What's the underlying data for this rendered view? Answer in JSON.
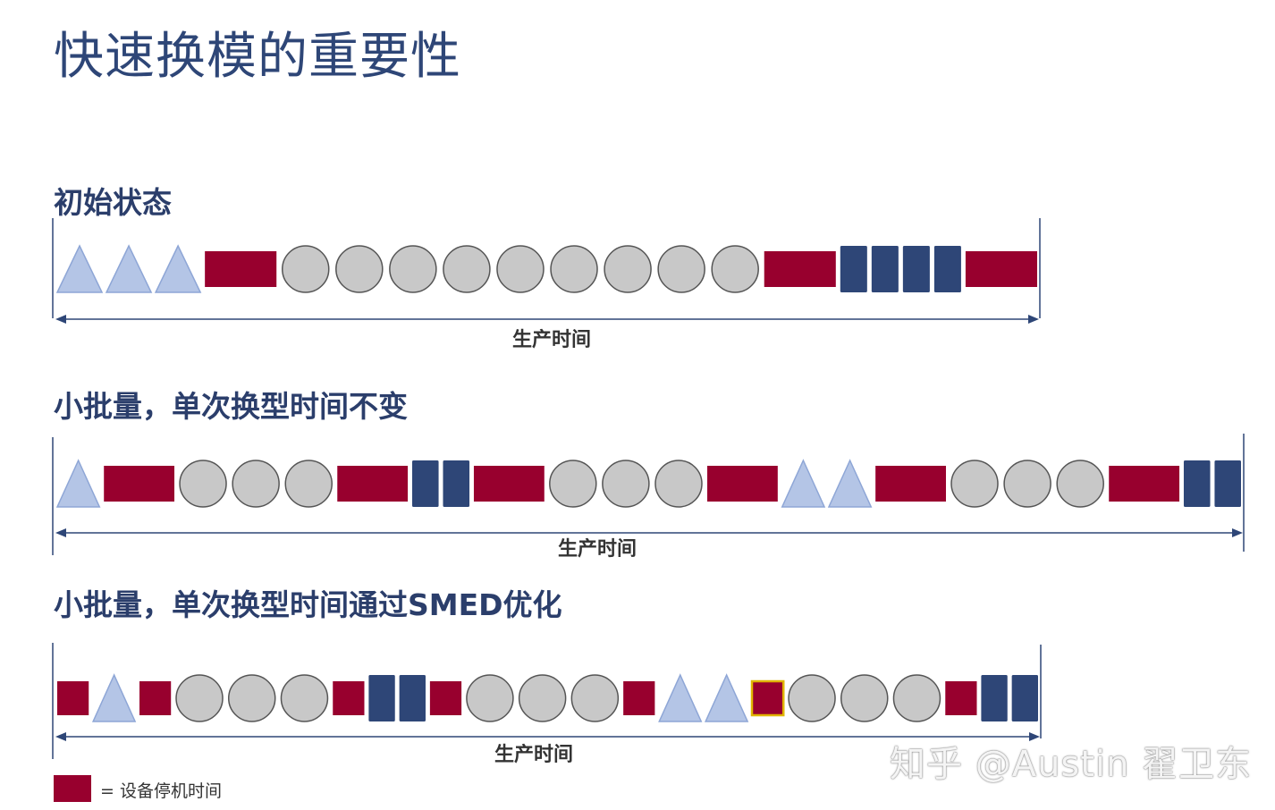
{
  "page": {
    "title": "快速换模的重要性"
  },
  "colors": {
    "downtime": "#98002E",
    "product_a": "#B4C5E6",
    "product_b": "#C8C8C8",
    "product_c": "#2E4677",
    "highlight_border": "#E0B400",
    "axis": "#2E4677"
  },
  "lanes": [
    {
      "title": "初始状态",
      "axis_label": "生产时间",
      "sequence": [
        "A",
        "A",
        "A",
        "D",
        "B",
        "B",
        "B",
        "B",
        "B",
        "B",
        "B",
        "B",
        "B",
        "D",
        "C",
        "C",
        "C",
        "C",
        "D"
      ]
    },
    {
      "title": "小批量，单次换型时间不变",
      "axis_label": "生产时间",
      "sequence": [
        "A",
        "D",
        "B",
        "B",
        "B",
        "D",
        "C",
        "C",
        "D",
        "B",
        "B",
        "B",
        "D",
        "A",
        "A",
        "D",
        "B",
        "B",
        "B",
        "D",
        "C",
        "C"
      ]
    },
    {
      "title": "小批量，单次换型时间通过SMED优化",
      "axis_label": "生产时间",
      "sequence": [
        "D",
        "A",
        "D",
        "B",
        "B",
        "B",
        "D",
        "C",
        "C",
        "D",
        "B",
        "B",
        "B",
        "D",
        "A",
        "A",
        "D*",
        "B",
        "B",
        "B",
        "D",
        "C",
        "C"
      ]
    }
  ],
  "legend": {
    "text": "= 设备停机时间"
  },
  "watermark": {
    "text": "知乎 @Austin 翟卫东"
  }
}
